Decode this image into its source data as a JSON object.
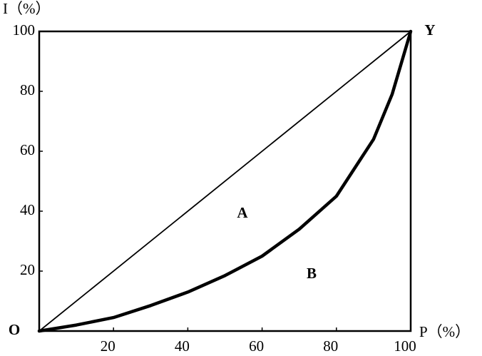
{
  "chart_data": {
    "type": "line",
    "y_label": "I（%）",
    "x_label": "P（%）",
    "annotations": [
      "O",
      "Y",
      "A",
      "B"
    ],
    "xlim": [
      0,
      100
    ],
    "ylim": [
      0,
      100
    ],
    "xticks": [
      20,
      40,
      60,
      80,
      100
    ],
    "yticks": [
      20,
      40,
      60,
      80,
      100
    ],
    "grid": false,
    "series": [
      {
        "color": "#000000",
        "x": [
          0,
          100
        ],
        "values": [
          0,
          100
        ]
      },
      {
        "color": "#000000",
        "x": [
          0,
          10,
          20,
          30,
          40,
          50,
          60,
          70,
          80,
          90,
          95,
          100
        ],
        "values": [
          0,
          2,
          4.5,
          8.5,
          13,
          18.5,
          25,
          34,
          45,
          64,
          79,
          100
        ]
      }
    ]
  }
}
